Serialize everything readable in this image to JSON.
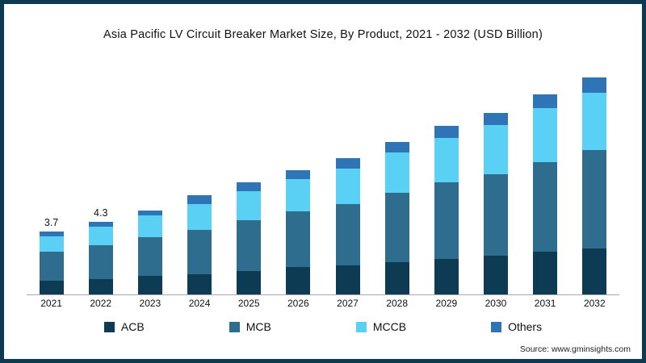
{
  "chart": {
    "title": "Asia Pacific LV Circuit Breaker Market Size, By Product, 2021 - 2032 (USD Billion)",
    "source": "Source: www.gminsights.com"
  },
  "chart_data": {
    "type": "bar",
    "stacked": true,
    "title": "Asia Pacific LV Circuit Breaker Market Size, By Product, 2021 - 2032 (USD Billion)",
    "xlabel": "",
    "ylabel": "USD Billion",
    "ylim": [
      0,
      14
    ],
    "grid": false,
    "legend_position": "bottom",
    "categories": [
      "2021",
      "2022",
      "2023",
      "2024",
      "2025",
      "2026",
      "2027",
      "2028",
      "2029",
      "2030",
      "2031",
      "2032"
    ],
    "series": [
      {
        "name": "ACB",
        "color": "#0d3b54",
        "values": [
          0.8,
          0.9,
          1.1,
          1.2,
          1.4,
          1.6,
          1.7,
          1.9,
          2.1,
          2.3,
          2.5,
          2.7
        ]
      },
      {
        "name": "MCB",
        "color": "#2e6d8e",
        "values": [
          1.7,
          2.0,
          2.3,
          2.6,
          3.0,
          3.3,
          3.6,
          4.1,
          4.5,
          4.8,
          5.3,
          5.8
        ]
      },
      {
        "name": "MCCB",
        "color": "#5ad0f5",
        "values": [
          0.9,
          1.1,
          1.3,
          1.5,
          1.7,
          1.9,
          2.1,
          2.4,
          2.6,
          2.9,
          3.2,
          3.4
        ]
      },
      {
        "name": "Others",
        "color": "#2f74b5",
        "values": [
          0.3,
          0.3,
          0.3,
          0.5,
          0.5,
          0.5,
          0.6,
          0.6,
          0.7,
          0.7,
          0.8,
          0.9
        ]
      }
    ],
    "totals": [
      3.7,
      4.3,
      5.0,
      5.8,
      6.6,
      7.3,
      8.0,
      9.0,
      9.9,
      10.7,
      11.8,
      12.8
    ],
    "data_labels": {
      "0": "3.7",
      "1": "4.3"
    }
  }
}
